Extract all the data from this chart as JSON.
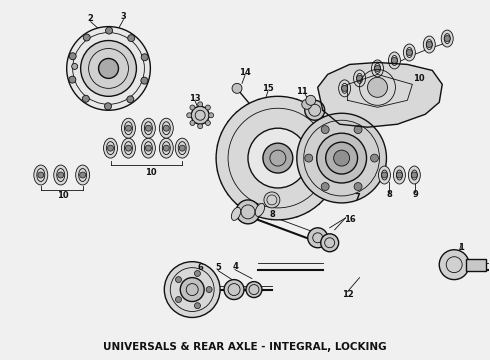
{
  "title": "UNIVERSALS & REAR AXLE - INTEGRAL, LOCKING",
  "title_fontsize": 7.5,
  "background_color": "#f0f0f0",
  "line_color": "#111111",
  "gray_fill": "#888888",
  "light_fill": "#cccccc",
  "figw": 4.9,
  "figh": 3.6,
  "dpi": 100
}
